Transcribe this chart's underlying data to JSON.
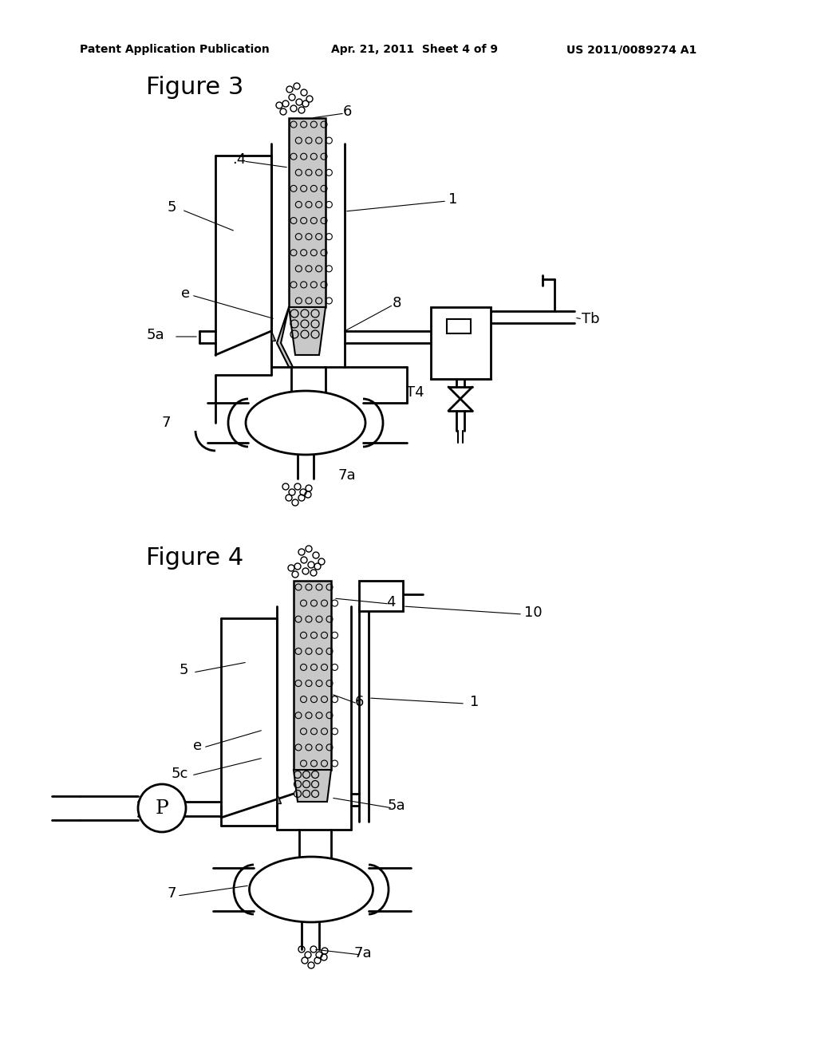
{
  "bg_color": "#ffffff",
  "line_color": "#000000",
  "header_left": "Patent Application Publication",
  "header_mid": "Apr. 21, 2011  Sheet 4 of 9",
  "header_right": "US 2011/0089274 A1",
  "fig3_title": "Figure 3",
  "fig4_title": "Figure 4",
  "gray_fill": "#c8c8c8",
  "dark_gray": "#888888",
  "light_gray": "#e8e8e8"
}
